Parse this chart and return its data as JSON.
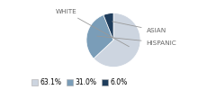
{
  "labels": [
    "WHITE",
    "HISPANIC",
    "ASIAN"
  ],
  "values": [
    63.1,
    31.0,
    6.0
  ],
  "colors": [
    "#cdd5e0",
    "#7a9db8",
    "#1f3d5c"
  ],
  "legend_labels": [
    "63.1%",
    "31.0%",
    "6.0%"
  ],
  "startangle": 90,
  "label_fontsize": 5.2,
  "legend_fontsize": 5.5,
  "label_color": "#666666",
  "line_color": "#999999"
}
